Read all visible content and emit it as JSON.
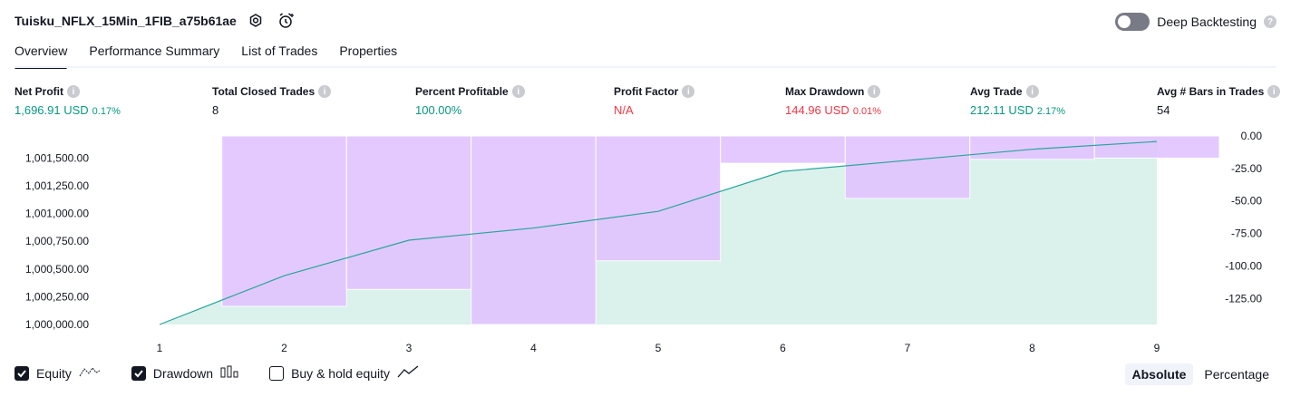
{
  "header": {
    "title": "Tuisku_NFLX_15Min_1FIB_a75b61ae",
    "deep_backtesting_label": "Deep Backtesting"
  },
  "tabs": [
    "Overview",
    "Performance Summary",
    "List of Trades",
    "Properties"
  ],
  "metrics": {
    "net_profit": {
      "label": "Net Profit",
      "value": "1,696.91 USD",
      "pct": "0.17%"
    },
    "total_closed_trades": {
      "label": "Total Closed Trades",
      "value": "8"
    },
    "percent_profitable": {
      "label": "Percent Profitable",
      "value": "100.00%"
    },
    "profit_factor": {
      "label": "Profit Factor",
      "value": "N/A"
    },
    "max_drawdown": {
      "label": "Max Drawdown",
      "value": "144.96 USD",
      "pct": "0.01%"
    },
    "avg_trade": {
      "label": "Avg Trade",
      "value": "212.11 USD",
      "pct": "2.17%"
    },
    "avg_bars": {
      "label": "Avg # Bars in Trades",
      "value": "54"
    }
  },
  "chart_data": {
    "type": "area",
    "x": [
      1,
      2,
      3,
      4,
      5,
      6,
      7,
      8,
      9
    ],
    "series": [
      {
        "name": "Equity",
        "axis": "left",
        "values": [
          1000000,
          1000440,
          1000760,
          1000870,
          1001020,
          1001380,
          1001480,
          1001580,
          1001650
        ]
      },
      {
        "name": "Drawdown",
        "axis": "right",
        "type": "bar",
        "values": [
          0,
          -131,
          -118,
          -144.96,
          -96,
          -21,
          -48,
          -18,
          -17
        ]
      }
    ],
    "left_ticks": [
      "1,000,000.00",
      "1,000,250.00",
      "1,000,500.00",
      "1,000,750.00",
      "1,001,000.00",
      "1,001,250.00",
      "1,001,500.00"
    ],
    "left_tick_values": [
      1000000,
      1000250,
      1000500,
      1000750,
      1001000,
      1001250,
      1001500
    ],
    "right_ticks": [
      "0.00",
      "-25.00",
      "-50.00",
      "-75.00",
      "-100.00",
      "-125.00"
    ],
    "right_tick_values": [
      0,
      -25,
      -50,
      -75,
      -100,
      -125
    ],
    "ylim_left": [
      1000000,
      1001700
    ],
    "ylim_right": [
      -144.96,
      0
    ],
    "colors": {
      "equity_line": "#26a69a",
      "equity_fill": "#d4efe9",
      "drawdown_bar": "#e1c4ff",
      "drawdown_overlap": "#c7bff0"
    }
  },
  "legend": {
    "equity": "Equity",
    "drawdown": "Drawdown",
    "buy_hold": "Buy & hold equity"
  },
  "modes": {
    "absolute": "Absolute",
    "percentage": "Percentage"
  }
}
